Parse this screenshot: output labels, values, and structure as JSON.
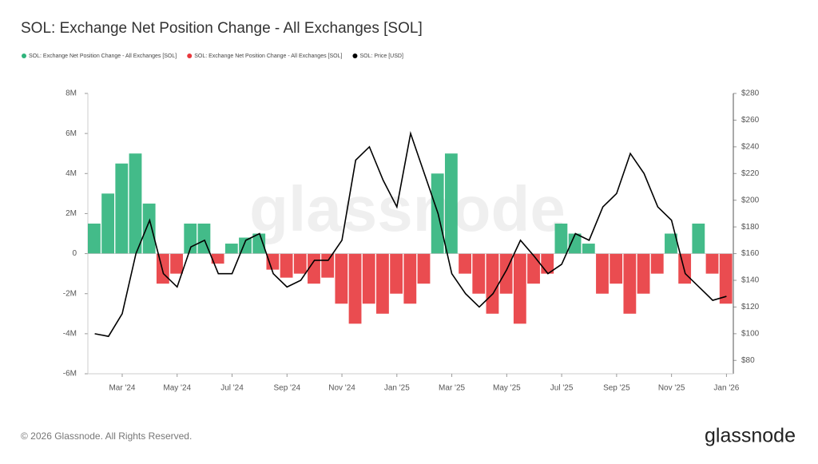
{
  "chart_data": {
    "type": "bar",
    "title": "SOL: Exchange Net Position Change - All Exchanges [SOL]",
    "watermark": "glassnode",
    "footer": "© 2026 Glassnode. All Rights Reserved.",
    "logo": "glassnode",
    "categories": [
      null,
      null,
      "Mar '24",
      null,
      null,
      null,
      "May '24",
      null,
      null,
      null,
      "Jul '24",
      null,
      null,
      null,
      "Sep '24",
      null,
      null,
      null,
      "Nov '24",
      null,
      null,
      null,
      "Jan '25",
      null,
      null,
      null,
      "Mar '25",
      null,
      null,
      null,
      "May '25",
      null,
      null,
      null,
      "Jul '25",
      null,
      null,
      null,
      "Sep '25",
      null,
      null,
      null,
      "Nov '25",
      null,
      null,
      null,
      "Jan '26"
    ],
    "series": [
      {
        "name": "SOL: Exchange Net Position Change - All Exchanges [SOL]",
        "color": "#2fb47c",
        "values": [
          1500000,
          3000000,
          4500000,
          5000000,
          2500000,
          null,
          null,
          1500000,
          1500000,
          null,
          500000,
          800000,
          1000000,
          null,
          null,
          null,
          null,
          null,
          null,
          null,
          null,
          null,
          null,
          null,
          null,
          4000000,
          5000000,
          null,
          null,
          null,
          null,
          null,
          null,
          null,
          1500000,
          1000000,
          500000,
          null,
          null,
          null,
          null,
          null,
          1000000,
          null,
          1500000,
          null,
          null
        ]
      },
      {
        "name": "SOL: Exchange Net Position Change - All Exchanges [SOL]",
        "color": "#e8383d",
        "values": [
          null,
          null,
          null,
          null,
          null,
          -1500000,
          -1000000,
          null,
          null,
          -500000,
          null,
          null,
          null,
          -800000,
          -1200000,
          -1000000,
          -1500000,
          -1200000,
          -2500000,
          -3500000,
          -2500000,
          -3000000,
          -2000000,
          -2500000,
          -1500000,
          null,
          null,
          -1000000,
          -2000000,
          -3000000,
          -2000000,
          -3500000,
          -1500000,
          -1000000,
          null,
          null,
          null,
          -2000000,
          -1500000,
          -3000000,
          -2000000,
          -1000000,
          null,
          -1500000,
          null,
          -1000000,
          -2500000
        ]
      },
      {
        "name": "SOL: Price [USD]",
        "color": "#000000",
        "axis": "y2",
        "line": true,
        "values": [
          100,
          98,
          115,
          160,
          185,
          145,
          135,
          165,
          170,
          145,
          145,
          170,
          175,
          145,
          135,
          140,
          155,
          155,
          170,
          230,
          240,
          215,
          195,
          250,
          220,
          190,
          145,
          130,
          120,
          130,
          148,
          170,
          158,
          145,
          152,
          175,
          170,
          195,
          205,
          235,
          220,
          195,
          185,
          145,
          135,
          125,
          128
        ]
      }
    ],
    "ylim": [
      -6000000,
      8000000
    ],
    "yticks": [
      {
        "value": -6000000,
        "label": "-6M"
      },
      {
        "value": -4000000,
        "label": "-4M"
      },
      {
        "value": -2000000,
        "label": "-2M"
      },
      0,
      {
        "value": 2000000,
        "label": "2M"
      },
      {
        "value": 4000000,
        "label": "4M"
      },
      {
        "value": 6000000,
        "label": "6M"
      },
      {
        "value": 8000000,
        "label": "8M"
      }
    ],
    "y2lim": [
      70,
      280
    ],
    "y2ticks": [
      {
        "value": 80,
        "label": "$80"
      },
      {
        "value": 100,
        "label": "$100"
      },
      {
        "value": 120,
        "label": "$120"
      },
      {
        "value": 140,
        "label": "$140"
      },
      {
        "value": 160,
        "label": "$160"
      },
      {
        "value": 180,
        "label": "$180"
      },
      {
        "value": 200,
        "label": "$200"
      },
      {
        "value": 220,
        "label": "$220"
      },
      {
        "value": 240,
        "label": "$240"
      },
      {
        "value": 260,
        "label": "$260"
      },
      {
        "value": 280,
        "label": "$280"
      }
    ]
  }
}
